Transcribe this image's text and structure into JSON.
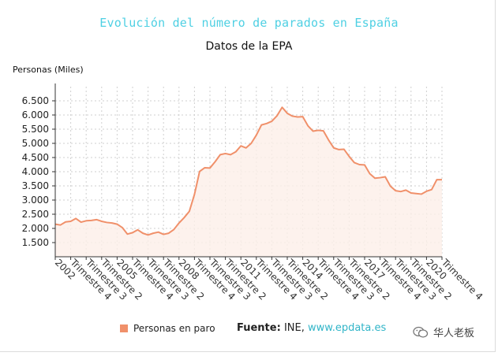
{
  "chart_data": {
    "type": "area",
    "title": "Evolución del número de parados en España",
    "subtitle": "Datos de la EPA",
    "ylabel": "Personas (Miles)",
    "xlabel": "",
    "ylim": [
      1000,
      7000
    ],
    "yticks": [
      1500,
      2000,
      2500,
      3000,
      3500,
      4000,
      4500,
      5000,
      5500,
      6000,
      6500
    ],
    "ytick_labels": [
      "1.500",
      "2.000",
      "2.500",
      "3.000",
      "3.500",
      "4.000",
      "4.500",
      "5.000",
      "5.500",
      "6.000",
      "6.500"
    ],
    "xtick_labels": [
      "2002",
      "Trimestre 4",
      "Trimestre 3",
      "Trimestre 2",
      "2005",
      "Trimestre 4",
      "Trimestre 3",
      "Trimestre 2",
      "2008",
      "Trimestre 4",
      "Trimestre 3",
      "Trimestre 2",
      "2011",
      "Trimestre 4",
      "Trimestre 3",
      "Trimestre 2",
      "2014",
      "Trimestre 4",
      "Trimestre 3",
      "Trimestre 2",
      "2017",
      "Trimestre 4",
      "Trimestre 3",
      "Trimestre 2",
      "2020",
      "Trimestre 4"
    ],
    "grid": true,
    "series": [
      {
        "name": "Personas en paro",
        "color": "#f0906a",
        "values": [
          2150,
          2120,
          2230,
          2250,
          2350,
          2220,
          2270,
          2280,
          2310,
          2250,
          2210,
          2190,
          2150,
          2030,
          1800,
          1850,
          1950,
          1830,
          1770,
          1830,
          1870,
          1790,
          1830,
          1960,
          2190,
          2380,
          2600,
          3200,
          4010,
          4140,
          4130,
          4350,
          4600,
          4640,
          4600,
          4700,
          4910,
          4840,
          5000,
          5290,
          5650,
          5700,
          5780,
          5970,
          6270,
          6060,
          5960,
          5930,
          5940,
          5620,
          5430,
          5460,
          5440,
          5120,
          4840,
          4780,
          4790,
          4540,
          4320,
          4250,
          4240,
          3930,
          3770,
          3790,
          3820,
          3490,
          3330,
          3300,
          3350,
          3250,
          3230,
          3210,
          3310,
          3370,
          3720,
          3720
        ]
      }
    ],
    "legend": "bottom"
  },
  "legend": {
    "label": "Personas en paro"
  },
  "source": {
    "prefix": "Fuente:",
    "org": "INE,",
    "site": "www.epdata.es"
  },
  "watermark": {
    "text": "华人老板"
  },
  "colors": {
    "line": "#f0906a",
    "fill": "#fdefe8",
    "title": "#4fd0e3",
    "link": "#31b5c8"
  }
}
